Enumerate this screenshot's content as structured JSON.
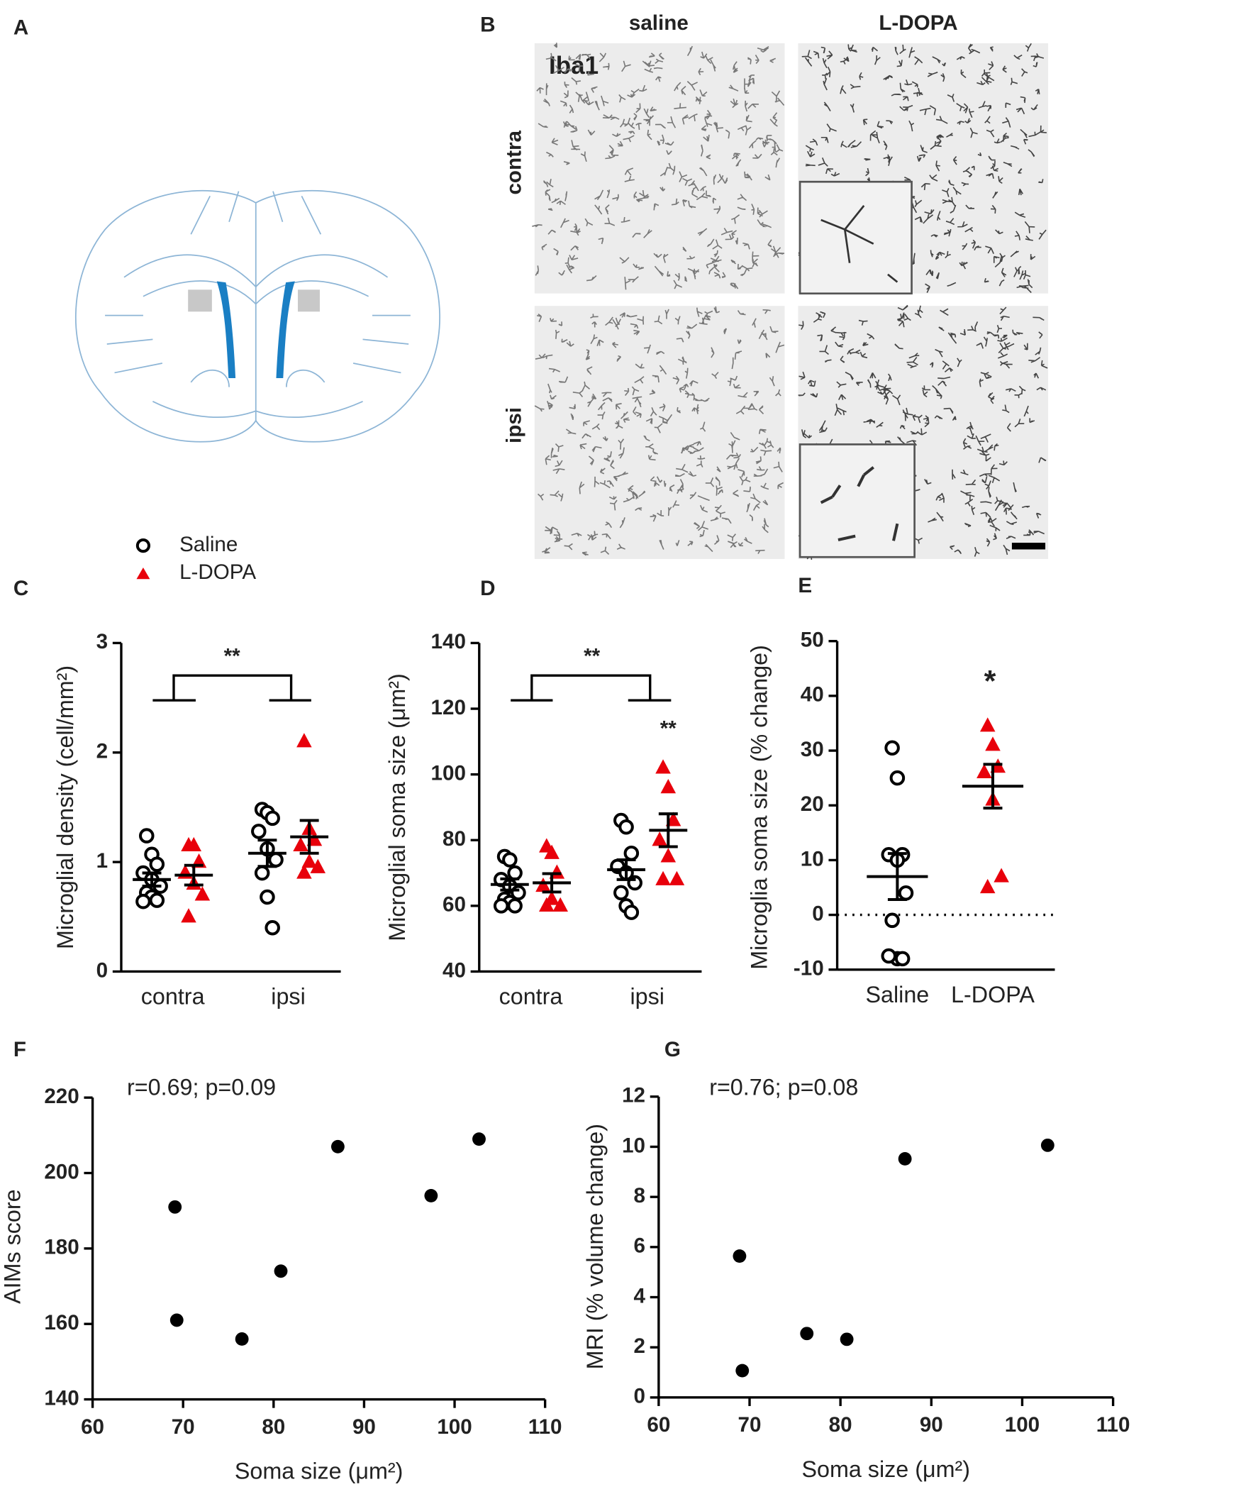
{
  "figure": {
    "panels": [
      "A",
      "B",
      "C",
      "D",
      "E",
      "F",
      "G"
    ],
    "micrograph": {
      "stain": "Iba1",
      "columns": [
        "saline",
        "L-DOPA"
      ],
      "rows": [
        "contra",
        "ipsi"
      ]
    }
  },
  "chart_data": [
    {
      "type": "dotplot",
      "ylabel": "Microglial density (cell/mm²)",
      "categories": [
        "contra",
        "ipsi"
      ],
      "ylim": [
        0,
        3
      ],
      "yticks": [
        0,
        1,
        2,
        3
      ],
      "annotations": [
        "**"
      ],
      "series": [
        {
          "name": "Saline",
          "color": "#000000",
          "marker": "open-circle",
          "values": [
            [
              1.24,
              1.07,
              0.98,
              0.9,
              0.84,
              0.78,
              0.72,
              0.68,
              0.65,
              0.64
            ],
            [
              1.48,
              1.45,
              1.4,
              1.28,
              1.12,
              1.02,
              0.9,
              0.68,
              0.4
            ]
          ],
          "means": [
            0.84,
            1.08
          ],
          "sem": [
            0.06,
            0.12
          ]
        },
        {
          "name": "L-DOPA",
          "color": "#e8000b",
          "marker": "triangle",
          "values": [
            [
              1.15,
              1.15,
              1.0,
              0.9,
              0.8,
              0.7,
              0.5
            ],
            [
              2.1,
              1.3,
              1.2,
              1.15,
              1.0,
              0.95,
              0.9
            ]
          ],
          "means": [
            0.88,
            1.23
          ],
          "sem": [
            0.09,
            0.15
          ]
        }
      ]
    },
    {
      "type": "dotplot",
      "ylabel": "Microglial soma size (μm²)",
      "categories": [
        "contra",
        "ipsi"
      ],
      "ylim": [
        40,
        140
      ],
      "yticks": [
        40,
        60,
        80,
        100,
        120,
        140
      ],
      "annotations": [
        "**",
        "**"
      ],
      "series": [
        {
          "color": "#000000",
          "marker": "open-circle",
          "values": [
            [
              75,
              74,
              70,
              68,
              66,
              64,
              62,
              61,
              60,
              60
            ],
            [
              86,
              84,
              76,
              72,
              70,
              67,
              64,
              60,
              58
            ]
          ],
          "means": [
            66.5,
            71
          ],
          "sem": [
            1.7,
            3
          ]
        },
        {
          "color": "#e8000b",
          "marker": "triangle",
          "values": [
            [
              78,
              76,
              70,
              66,
              62,
              60,
              60
            ],
            [
              102,
              96,
              86,
              80,
              75,
              68,
              68
            ]
          ],
          "means": [
            67,
            83
          ],
          "sem": [
            2.8,
            5
          ]
        }
      ]
    },
    {
      "type": "dotplot",
      "ylabel": "Microglia soma size (% change)",
      "categories": [
        "Saline",
        "L-DOPA"
      ],
      "ylim": [
        -10,
        50
      ],
      "yticks": [
        -10,
        0,
        10,
        20,
        30,
        40,
        50
      ],
      "reference_line": 0,
      "annotations": [
        "*"
      ],
      "series": [
        {
          "color": "#000000",
          "marker": "open-circle",
          "values": [
            [
              30.5,
              25,
              11,
              11,
              10,
              4,
              -1,
              -8,
              -8,
              -7.5
            ],
            null
          ],
          "means": [
            7,
            null
          ],
          "sem": [
            4.2,
            null
          ]
        },
        {
          "color": "#e8000b",
          "marker": "triangle",
          "values": [
            null,
            [
              34.5,
              31,
              27,
              26,
              21,
              7,
              5
            ]
          ],
          "means": [
            null,
            23.5
          ],
          "sem": [
            null,
            4
          ]
        }
      ]
    },
    {
      "type": "scatter",
      "annotation": "r=0.69; p=0.09",
      "xlabel": "Soma size (μm²)",
      "ylabel": "AIMs score",
      "color": "#000000",
      "x": [
        69.1,
        69.3,
        76.5,
        80.8,
        87.1,
        97.4,
        102.7
      ],
      "y": [
        191,
        161,
        156,
        174,
        207,
        194,
        209
      ],
      "xlim": [
        60,
        110
      ],
      "xticks": [
        60,
        70,
        80,
        90,
        100,
        110
      ],
      "ylim": [
        140,
        220
      ],
      "yticks": [
        140,
        160,
        180,
        200,
        220
      ]
    },
    {
      "type": "scatter",
      "annotation": "r=0.76; p=0.08",
      "xlabel": "Soma size (μm²)",
      "ylabel": "MRI (% volume change)",
      "color": "#000000",
      "x": [
        68.9,
        69.2,
        76.3,
        80.7,
        87.1,
        102.8
      ],
      "y": [
        5.64,
        1.07,
        2.55,
        2.32,
        9.52,
        10.06
      ],
      "xlim": [
        60,
        110
      ],
      "xticks": [
        60,
        70,
        80,
        90,
        100,
        110
      ],
      "ylim": [
        0,
        12
      ],
      "yticks": [
        0,
        2,
        4,
        6,
        8,
        10,
        12
      ]
    }
  ]
}
